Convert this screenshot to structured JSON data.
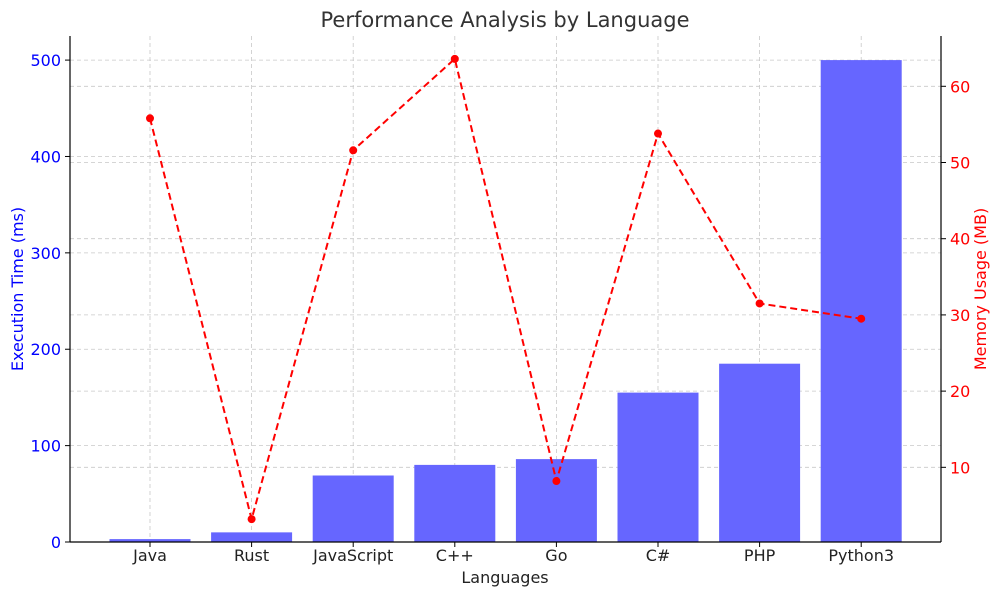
{
  "chart_data": {
    "type": "bar",
    "title": "Performance Analysis by Language",
    "xlabel": "Languages",
    "categories": [
      "Java",
      "Rust",
      "JavaScript",
      "C++",
      "Go",
      "C#",
      "PHP",
      "Python3"
    ],
    "series": [
      {
        "axis": "left",
        "type": "bar",
        "color": "#6666ff",
        "values": [
          3,
          10,
          69,
          80,
          86,
          155,
          185,
          500
        ]
      },
      {
        "axis": "right",
        "type": "line",
        "style": "dashed",
        "marker": "circle",
        "color": "#ff0000",
        "values": [
          55.8,
          3.2,
          51.6,
          63.6,
          8.2,
          53.8,
          31.5,
          29.5
        ]
      }
    ],
    "y_left": {
      "label": "Execution Time (ms)",
      "color": "#0000ff",
      "ylim": [
        0,
        525
      ],
      "ticks": [
        0,
        100,
        200,
        300,
        400,
        500
      ]
    },
    "y_right": {
      "label": "Memory Usage (MB)",
      "color": "#ff0000",
      "ylim": [
        0.2,
        66.6
      ],
      "ticks": [
        10,
        20,
        30,
        40,
        50,
        60
      ]
    },
    "grid": true
  }
}
